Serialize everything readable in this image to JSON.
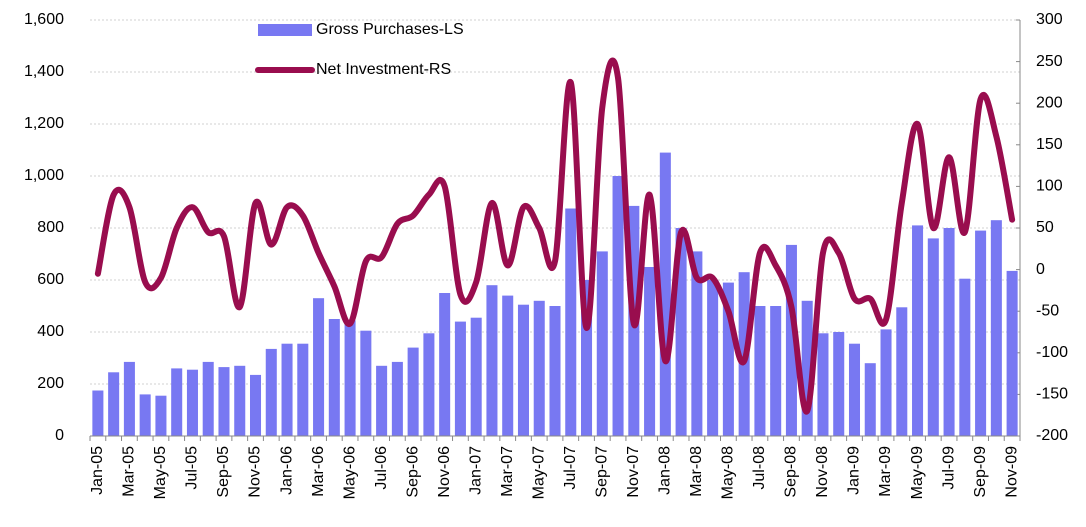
{
  "chart_data": {
    "type": "bar",
    "categories": [
      "Jan-05",
      null,
      "Mar-05",
      null,
      "May-05",
      null,
      "Jul-05",
      null,
      "Sep-05",
      null,
      "Nov-05",
      null,
      "Jan-06",
      null,
      "Mar-06",
      null,
      "May-06",
      null,
      "Jul-06",
      null,
      "Sep-06",
      null,
      "Nov-06",
      null,
      "Jan-07",
      null,
      "Mar-07",
      null,
      "May-07",
      null,
      "Jul-07",
      null,
      "Sep-07",
      null,
      "Nov-07",
      null,
      "Jan-08",
      null,
      "Mar-08",
      null,
      "May-08",
      null,
      "Jul-08",
      null,
      "Sep-08",
      null,
      "Nov-08",
      null,
      "Jan-09",
      null,
      "Mar-09",
      null,
      "May-09",
      null,
      "Jul-09",
      null,
      "Sep-09",
      null,
      "Nov-09"
    ],
    "series": [
      {
        "name": "Gross Purchases-LS",
        "type": "bar",
        "color": "#7878f2",
        "values": [
          175,
          245,
          285,
          160,
          155,
          260,
          255,
          285,
          265,
          270,
          235,
          335,
          355,
          355,
          530,
          450,
          445,
          405,
          270,
          285,
          340,
          395,
          550,
          440,
          455,
          580,
          540,
          505,
          520,
          500,
          875,
          600,
          710,
          1000,
          885,
          650,
          1090,
          800,
          710,
          600,
          590,
          630,
          500,
          500,
          735,
          520,
          395,
          400,
          355,
          280,
          410,
          495,
          810,
          760,
          800,
          605,
          790,
          830,
          635
        ]
      },
      {
        "name": "Net Investment-RS",
        "type": "line",
        "axis": "y2",
        "color": "#990d4e",
        "values": [
          -5,
          90,
          75,
          -15,
          -10,
          50,
          75,
          45,
          40,
          -45,
          80,
          30,
          75,
          65,
          20,
          -20,
          -65,
          10,
          15,
          55,
          65,
          90,
          100,
          -30,
          -15,
          80,
          5,
          75,
          50,
          10,
          225,
          -70,
          195,
          230,
          -65,
          90,
          -110,
          45,
          -10,
          -10,
          -50,
          -110,
          20,
          5,
          -45,
          -170,
          20,
          20,
          -35,
          -35,
          -60,
          80,
          175,
          50,
          135,
          45,
          205,
          160,
          60
        ]
      }
    ],
    "ylim": [
      0,
      1600
    ],
    "yticks": [
      0,
      200,
      400,
      600,
      800,
      {
        "value": 1000,
        "label": "1,000"
      },
      {
        "value": 1200,
        "label": "1,200"
      },
      {
        "value": 1400,
        "label": "1,400"
      },
      {
        "value": 1600,
        "label": "1,600"
      }
    ],
    "y2lim": [
      -200,
      300
    ],
    "y2ticks": [
      -200,
      -150,
      -100,
      -50,
      0,
      50,
      100,
      150,
      200,
      250,
      300
    ],
    "grid": true
  }
}
